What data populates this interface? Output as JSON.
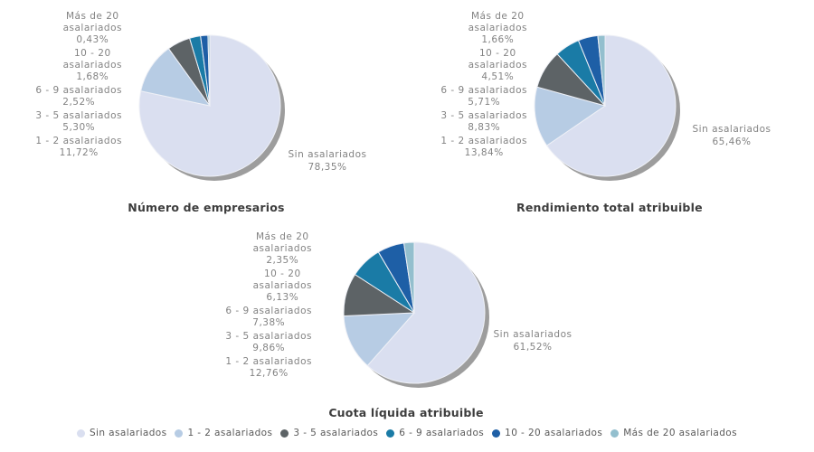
{
  "colors": {
    "sin_asalariados": "#dadff0",
    "asal_1_2": "#b7cce4",
    "asal_3_5": "#5d6366",
    "asal_6_9": "#1a7ba6",
    "asal_10_20": "#1e5fa6",
    "asal_mas_20": "#93bfce",
    "pie_shadow": "#9d9d9d",
    "label_text": "#838383",
    "title_text": "#3d3d3d"
  },
  "chart_data": [
    {
      "type": "pie",
      "title": "Número de empresarios",
      "legend_position": "bottom",
      "slices": [
        {
          "key": "sin-asalariados",
          "label": "Sin asalariados",
          "label_lines": [
            "Sin asalariados"
          ],
          "value": 78.35,
          "display": "78,35%",
          "color": "#dadff0"
        },
        {
          "key": "1-2-asalariados",
          "label": "1 - 2 asalariados",
          "label_lines": [
            "1 - 2 asalariados"
          ],
          "value": 11.72,
          "display": "11,72%",
          "color": "#b7cce4"
        },
        {
          "key": "3-5-asalariados",
          "label": "3 - 5 asalariados",
          "label_lines": [
            "3 - 5 asalariados"
          ],
          "value": 5.3,
          "display": "5,30%",
          "color": "#5d6366"
        },
        {
          "key": "6-9-asalariados",
          "label": "6 - 9 asalariados",
          "label_lines": [
            "6 - 9 asalariados"
          ],
          "value": 2.52,
          "display": "2,52%",
          "color": "#1a7ba6"
        },
        {
          "key": "10-20-asalariados",
          "label": "10 - 20 asalariados",
          "label_lines": [
            "10 - 20",
            "asalariados"
          ],
          "value": 1.68,
          "display": "1,68%",
          "color": "#1e5fa6"
        },
        {
          "key": "mas-de-20-asalariados",
          "label": "Más de 20 asalariados",
          "label_lines": [
            "Más de 20",
            "asalariados"
          ],
          "value": 0.43,
          "display": "0,43%",
          "color": "#93bfce"
        }
      ]
    },
    {
      "type": "pie",
      "title": "Rendimiento total atribuible",
      "legend_position": "bottom",
      "slices": [
        {
          "key": "sin-asalariados",
          "label": "Sin asalariados",
          "label_lines": [
            "Sin asalariados"
          ],
          "value": 65.46,
          "display": "65,46%",
          "color": "#dadff0"
        },
        {
          "key": "1-2-asalariados",
          "label": "1 - 2 asalariados",
          "label_lines": [
            "1 - 2 asalariados"
          ],
          "value": 13.84,
          "display": "13,84%",
          "color": "#b7cce4"
        },
        {
          "key": "3-5-asalariados",
          "label": "3 - 5 asalariados",
          "label_lines": [
            "3 - 5 asalariados"
          ],
          "value": 8.83,
          "display": "8,83%",
          "color": "#5d6366"
        },
        {
          "key": "6-9-asalariados",
          "label": "6 - 9 asalariados",
          "label_lines": [
            "6 - 9 asalariados"
          ],
          "value": 5.71,
          "display": "5,71%",
          "color": "#1a7ba6"
        },
        {
          "key": "10-20-asalariados",
          "label": "10 - 20 asalariados",
          "label_lines": [
            "10 - 20",
            "asalariados"
          ],
          "value": 4.51,
          "display": "4,51%",
          "color": "#1e5fa6"
        },
        {
          "key": "mas-de-20-asalariados",
          "label": "Más de 20 asalariados",
          "label_lines": [
            "Más de 20",
            "asalariados"
          ],
          "value": 1.66,
          "display": "1,66%",
          "color": "#93bfce"
        }
      ]
    },
    {
      "type": "pie",
      "title": "Cuota líquida atribuible",
      "legend_position": "bottom",
      "slices": [
        {
          "key": "sin-asalariados",
          "label": "Sin asalariados",
          "label_lines": [
            "Sin asalariados"
          ],
          "value": 61.52,
          "display": "61,52%",
          "color": "#dadff0"
        },
        {
          "key": "1-2-asalariados",
          "label": "1 - 2 asalariados",
          "label_lines": [
            "1 - 2 asalariados"
          ],
          "value": 12.76,
          "display": "12,76%",
          "color": "#b7cce4"
        },
        {
          "key": "3-5-asalariados",
          "label": "3 - 5 asalariados",
          "label_lines": [
            "3 - 5 asalariados"
          ],
          "value": 9.86,
          "display": "9,86%",
          "color": "#5d6366"
        },
        {
          "key": "6-9-asalariados",
          "label": "6 - 9 asalariados",
          "label_lines": [
            "6 - 9 asalariados"
          ],
          "value": 7.38,
          "display": "7,38%",
          "color": "#1a7ba6"
        },
        {
          "key": "10-20-asalariados",
          "label": "10 - 20 asalariados",
          "label_lines": [
            "10 - 20",
            "asalariados"
          ],
          "value": 6.13,
          "display": "6,13%",
          "color": "#1e5fa6"
        },
        {
          "key": "mas-de-20-asalariados",
          "label": "Más de 20 asalariados",
          "label_lines": [
            "Más de 20",
            "asalariados"
          ],
          "value": 2.35,
          "display": "2,35%",
          "color": "#93bfce"
        }
      ]
    }
  ],
  "legend": {
    "items": [
      {
        "label": "Sin asalariados",
        "color": "#dadff0"
      },
      {
        "label": "1 - 2 asalariados",
        "color": "#b7cce4"
      },
      {
        "label": "3 - 5 asalariados",
        "color": "#5d6366"
      },
      {
        "label": "6 - 9 asalariados",
        "color": "#1a7ba6"
      },
      {
        "label": "10 - 20 asalariados",
        "color": "#1e5fa6"
      },
      {
        "label": "Más de 20 asalariados",
        "color": "#93bfce"
      }
    ]
  }
}
